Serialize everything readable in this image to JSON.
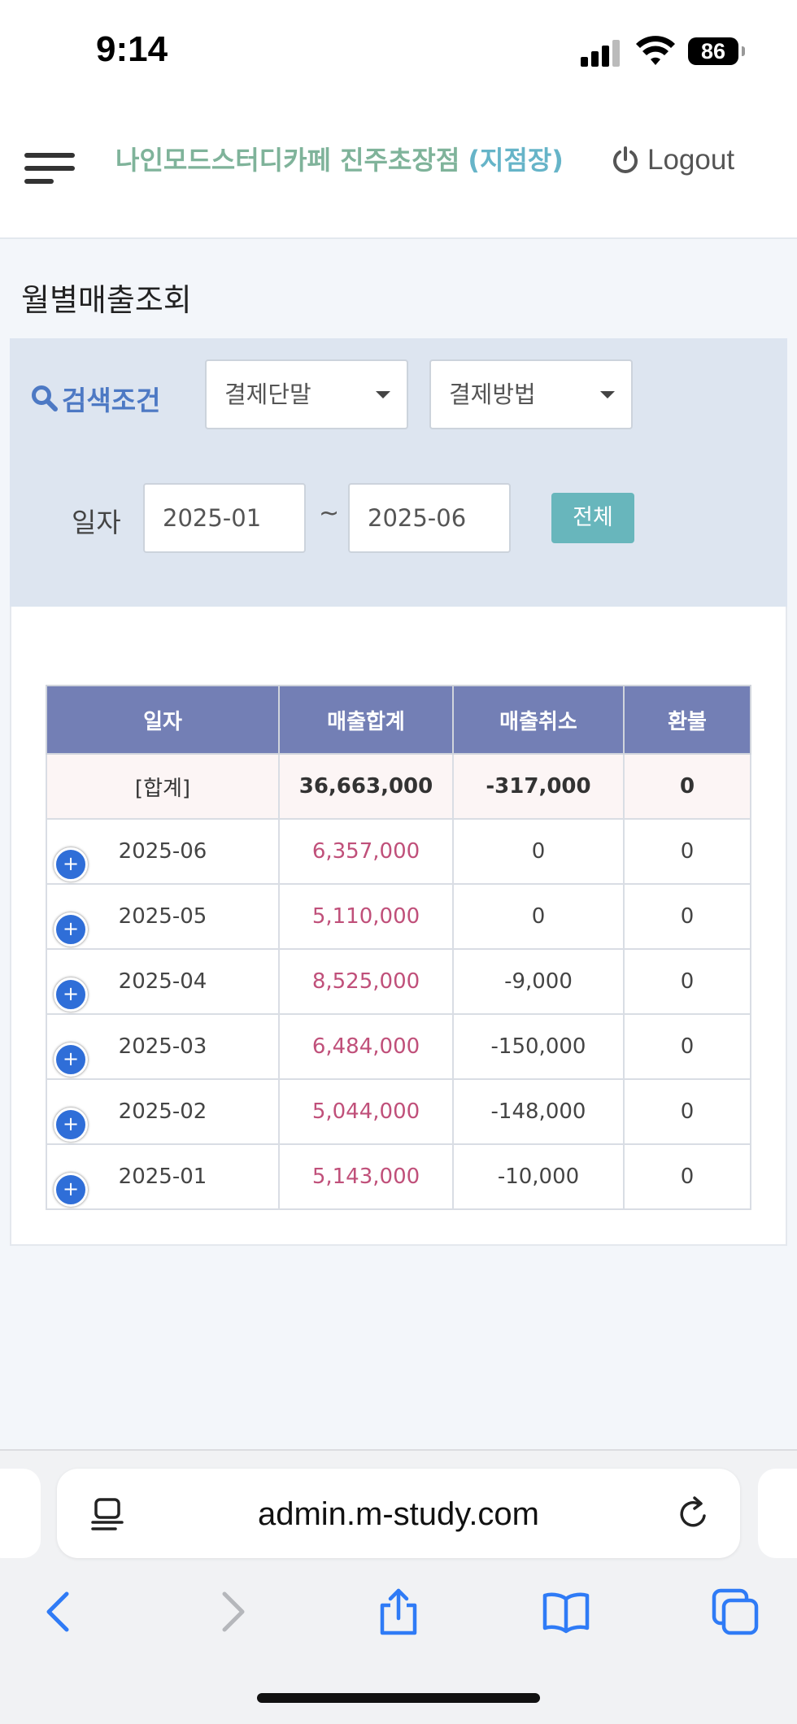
{
  "status_bar": {
    "time": "9:14",
    "battery": "86"
  },
  "header": {
    "store_name": "나인모드스터디카페 진주초장점",
    "role": "(지점장)",
    "logout_label": "Logout"
  },
  "page": {
    "title": "월별매출조회"
  },
  "search": {
    "label": "검색조건",
    "terminal_select": "결제단말",
    "method_select": "결제방법",
    "date_label": "일자",
    "date_from": "2025-01",
    "date_to": "2025-06",
    "tilde": "~",
    "all_button": "전체"
  },
  "table": {
    "headers": [
      "일자",
      "매출합계",
      "매출취소",
      "환불"
    ],
    "total": {
      "label": "[합계]",
      "sales": "36,663,000",
      "cancel": "-317,000",
      "refund": "0"
    },
    "rows": [
      {
        "month": "2025-06",
        "sales": "6,357,000",
        "cancel": "0",
        "refund": "0"
      },
      {
        "month": "2025-05",
        "sales": "5,110,000",
        "cancel": "0",
        "refund": "0"
      },
      {
        "month": "2025-04",
        "sales": "8,525,000",
        "cancel": "-9,000",
        "refund": "0"
      },
      {
        "month": "2025-03",
        "sales": "6,484,000",
        "cancel": "-150,000",
        "refund": "0"
      },
      {
        "month": "2025-02",
        "sales": "5,044,000",
        "cancel": "-148,000",
        "refund": "0"
      },
      {
        "month": "2025-01",
        "sales": "5,143,000",
        "cancel": "-10,000",
        "refund": "0"
      }
    ],
    "expand_symbol": "+"
  },
  "browser": {
    "url": "admin.m-study.com"
  },
  "colors": {
    "brand": "#7fb39a",
    "role": "#66b4c8",
    "search_accent": "#4d79c4",
    "table_header": "#737fb5",
    "sales_text": "#c0507a",
    "all_button": "#68b6bc",
    "expand_button": "#2f6ed8"
  },
  "icons": {
    "menu": "hamburger-icon",
    "logout": "power-icon",
    "search": "magnifier-icon",
    "reader": "reader-icon",
    "reload": "reload-icon",
    "back": "chevron-left-icon",
    "forward": "chevron-right-icon",
    "share": "share-icon",
    "bookmarks": "book-icon",
    "tabs": "tabs-icon"
  }
}
